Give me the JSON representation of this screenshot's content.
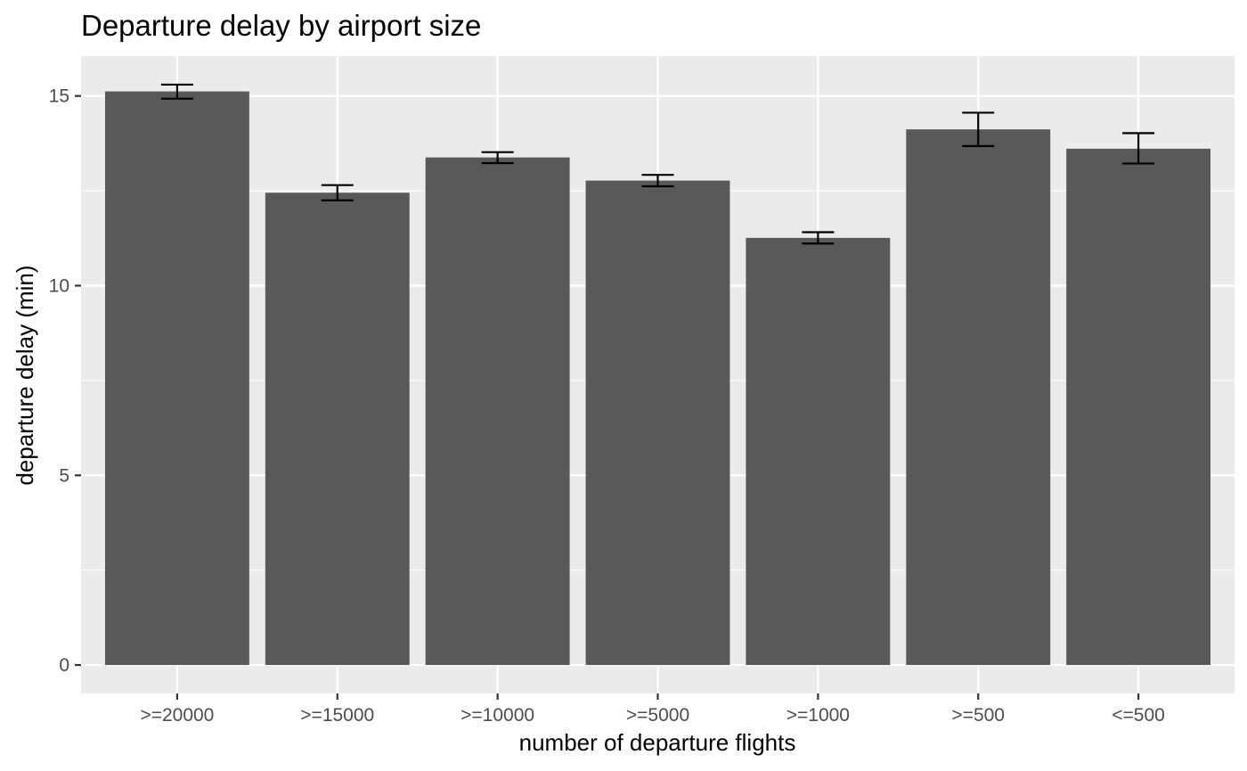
{
  "chart_data": {
    "type": "bar",
    "title": "Departure delay by airport size",
    "xlabel": "number of departure flights",
    "ylabel": "departure delay (min)",
    "categories": [
      ">=20000",
      ">=15000",
      ">=10000",
      ">=5000",
      ">=1000",
      ">=500",
      "<=500"
    ],
    "values": [
      15.12,
      12.45,
      13.38,
      12.77,
      11.26,
      14.12,
      13.61
    ],
    "error_lower": [
      14.93,
      12.25,
      13.23,
      12.62,
      11.11,
      13.68,
      13.22
    ],
    "error_upper": [
      15.3,
      12.65,
      13.52,
      12.92,
      11.41,
      14.56,
      14.02
    ],
    "ylim": [
      -0.75,
      16.05
    ],
    "y_ticks": [
      0,
      5,
      10,
      15
    ],
    "y_tick_labels": [
      "0",
      "5",
      "10",
      "15"
    ],
    "grid": true,
    "legend": "none",
    "colors": {
      "panel_background": "#ebebeb",
      "grid_line": "#ffffff",
      "bar_fill": "#595959",
      "error_bar": "#000000",
      "tick_mark": "#333333",
      "tick_label": "#4d4d4d",
      "text": "#000000"
    }
  }
}
